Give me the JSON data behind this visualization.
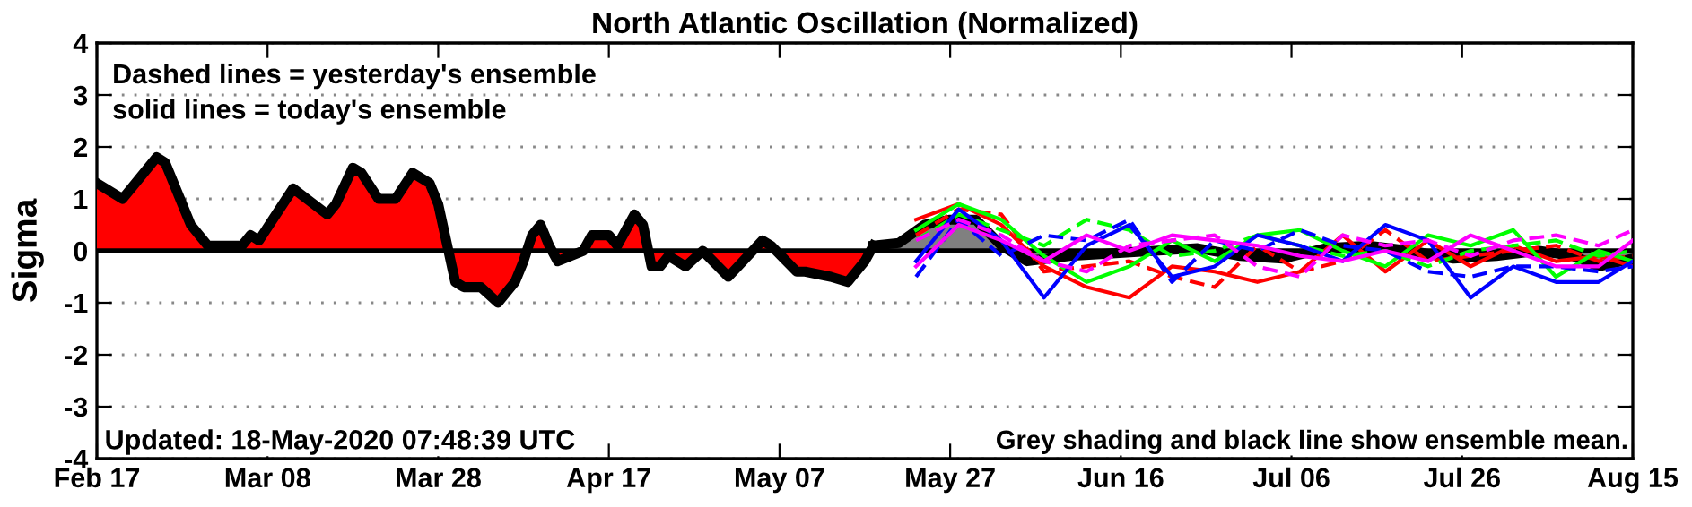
{
  "chart_data": {
    "type": "line",
    "title": "North Atlantic Oscillation (Normalized)",
    "ylabel": "Sigma",
    "annotations": [
      "Dashed lines = yesterday's ensemble",
      "solid lines = today's ensemble",
      "Updated: 18-May-2020 07:48:39 UTC",
      "Grey shading and black line show ensemble mean."
    ],
    "xlim": [
      "2020-02-17",
      "2020-08-15"
    ],
    "xticks": [
      {
        "value": "2020-02-17",
        "label": "Feb 17"
      },
      {
        "value": "2020-03-08",
        "label": "Mar 08"
      },
      {
        "value": "2020-03-28",
        "label": "Mar 28"
      },
      {
        "value": "2020-04-17",
        "label": "Apr 17"
      },
      {
        "value": "2020-05-07",
        "label": "May 07"
      },
      {
        "value": "2020-05-27",
        "label": "May 27"
      },
      {
        "value": "2020-06-16",
        "label": "Jun 16"
      },
      {
        "value": "2020-07-06",
        "label": "Jul 06"
      },
      {
        "value": "2020-07-26",
        "label": "Jul 26"
      },
      {
        "value": "2020-08-15",
        "label": "Aug 15"
      }
    ],
    "ylim": [
      -4,
      4
    ],
    "yticks": [
      -4,
      -3,
      -2,
      -1,
      0,
      1,
      2,
      3,
      4
    ],
    "grid": "y",
    "legend": false,
    "ref_lines": [
      {
        "axis": "y",
        "value": 0,
        "color": "#000000",
        "line_style": "solid"
      }
    ],
    "series": [
      {
        "color": "#ff0000",
        "line_style": "solid",
        "x": [
          "2020-05-23",
          "2020-05-28",
          "2020-06-02",
          "2020-06-07",
          "2020-06-12",
          "2020-06-17",
          "2020-06-22",
          "2020-06-27",
          "2020-07-02",
          "2020-07-07",
          "2020-07-12",
          "2020-07-17",
          "2020-07-22",
          "2020-07-27",
          "2020-08-01",
          "2020-08-06",
          "2020-08-11",
          "2020-08-15"
        ],
        "values": [
          0.6,
          0.9,
          0.5,
          -0.3,
          -0.7,
          -0.9,
          -0.3,
          -0.4,
          -0.6,
          -0.4,
          0.3,
          -0.4,
          0.2,
          -0.3,
          0.1,
          -0.2,
          -0.1,
          -0.3
        ]
      },
      {
        "color": "#ff0000",
        "line_style": "dashed",
        "x": [
          "2020-05-23",
          "2020-05-28",
          "2020-06-02",
          "2020-06-07",
          "2020-06-12",
          "2020-06-17",
          "2020-06-22",
          "2020-06-27",
          "2020-07-02",
          "2020-07-07",
          "2020-07-12",
          "2020-07-17",
          "2020-07-22",
          "2020-07-27",
          "2020-08-01",
          "2020-08-06",
          "2020-08-11",
          "2020-08-15"
        ],
        "values": [
          0.3,
          0.8,
          0.7,
          -0.4,
          -0.3,
          -0.2,
          -0.5,
          -0.7,
          0.1,
          -0.4,
          -0.2,
          0.4,
          -0.2,
          -0.1,
          0.0,
          0.1,
          -0.2,
          -0.1
        ]
      },
      {
        "color": "#00ff00",
        "line_style": "solid",
        "x": [
          "2020-05-23",
          "2020-05-28",
          "2020-06-02",
          "2020-06-07",
          "2020-06-12",
          "2020-06-17",
          "2020-06-22",
          "2020-06-27",
          "2020-07-02",
          "2020-07-07",
          "2020-07-12",
          "2020-07-17",
          "2020-07-22",
          "2020-07-27",
          "2020-08-01",
          "2020-08-06",
          "2020-08-11",
          "2020-08-15"
        ],
        "values": [
          0.4,
          0.9,
          0.6,
          -0.1,
          -0.6,
          -0.3,
          0.2,
          -0.2,
          0.3,
          0.4,
          0.0,
          -0.3,
          0.3,
          0.1,
          0.4,
          -0.5,
          0.0,
          -0.2
        ]
      },
      {
        "color": "#00ff00",
        "line_style": "dashed",
        "x": [
          "2020-05-23",
          "2020-05-28",
          "2020-06-02",
          "2020-06-07",
          "2020-06-12",
          "2020-06-17",
          "2020-06-22",
          "2020-06-27",
          "2020-07-02",
          "2020-07-07",
          "2020-07-12",
          "2020-07-17",
          "2020-07-22",
          "2020-07-27",
          "2020-08-01",
          "2020-08-06",
          "2020-08-11",
          "2020-08-15"
        ],
        "values": [
          0.2,
          0.7,
          0.4,
          0.1,
          0.6,
          0.4,
          -0.1,
          0.0,
          0.3,
          0.1,
          -0.1,
          0.0,
          -0.3,
          0.0,
          0.1,
          0.2,
          -0.1,
          0.0
        ]
      },
      {
        "color": "#0000ff",
        "line_style": "solid",
        "x": [
          "2020-05-23",
          "2020-05-28",
          "2020-06-02",
          "2020-06-07",
          "2020-06-12",
          "2020-06-17",
          "2020-06-22",
          "2020-06-27",
          "2020-07-02",
          "2020-07-07",
          "2020-07-12",
          "2020-07-17",
          "2020-07-22",
          "2020-07-27",
          "2020-08-01",
          "2020-08-06",
          "2020-08-11",
          "2020-08-15"
        ],
        "values": [
          -0.2,
          0.8,
          0.2,
          -0.9,
          0.1,
          0.5,
          -0.5,
          -0.3,
          0.3,
          0.1,
          -0.2,
          0.5,
          0.2,
          -0.9,
          -0.3,
          -0.6,
          -0.6,
          -0.2
        ]
      },
      {
        "color": "#0000ff",
        "line_style": "dashed",
        "x": [
          "2020-05-23",
          "2020-05-28",
          "2020-06-02",
          "2020-06-07",
          "2020-06-12",
          "2020-06-17",
          "2020-06-22",
          "2020-06-27",
          "2020-07-02",
          "2020-07-07",
          "2020-07-12",
          "2020-07-17",
          "2020-07-22",
          "2020-07-27",
          "2020-08-01",
          "2020-08-06",
          "2020-08-11",
          "2020-08-15"
        ],
        "values": [
          -0.5,
          0.6,
          -0.1,
          0.3,
          0.2,
          0.6,
          -0.6,
          0.2,
          0.0,
          0.4,
          0.1,
          0.0,
          -0.4,
          -0.5,
          -0.3,
          -0.3,
          -0.4,
          -0.3
        ]
      },
      {
        "color": "#ff00ff",
        "line_style": "solid",
        "x": [
          "2020-05-23",
          "2020-05-28",
          "2020-06-02",
          "2020-06-07",
          "2020-06-12",
          "2020-06-17",
          "2020-06-22",
          "2020-06-27",
          "2020-07-02",
          "2020-07-07",
          "2020-07-12",
          "2020-07-17",
          "2020-07-22",
          "2020-07-27",
          "2020-08-01",
          "2020-08-06",
          "2020-08-11",
          "2020-08-15"
        ],
        "values": [
          -0.3,
          0.5,
          0.2,
          -0.2,
          0.3,
          0.0,
          0.3,
          0.2,
          0.1,
          -0.1,
          -0.2,
          0.0,
          -0.2,
          0.3,
          0.0,
          -0.3,
          -0.3,
          0.2
        ]
      },
      {
        "color": "#ff00ff",
        "line_style": "dashed",
        "x": [
          "2020-05-23",
          "2020-05-28",
          "2020-06-02",
          "2020-06-07",
          "2020-06-12",
          "2020-06-17",
          "2020-06-22",
          "2020-06-27",
          "2020-07-02",
          "2020-07-07",
          "2020-07-12",
          "2020-07-17",
          "2020-07-22",
          "2020-07-27",
          "2020-08-01",
          "2020-08-06",
          "2020-08-11",
          "2020-08-15"
        ],
        "values": [
          0.2,
          0.6,
          0.3,
          -0.2,
          -0.4,
          0.1,
          0.2,
          0.3,
          -0.3,
          -0.5,
          0.3,
          0.1,
          0.2,
          -0.1,
          0.2,
          0.3,
          0.1,
          0.4
        ]
      },
      {
        "type": "area",
        "color": "#808080",
        "line_style": "solid",
        "x": [
          "2020-05-18",
          "2020-05-21",
          "2020-05-24",
          "2020-05-27",
          "2020-05-30",
          "2020-06-02",
          "2020-06-05",
          "2020-06-10",
          "2020-06-15",
          "2020-06-20",
          "2020-06-25",
          "2020-06-30",
          "2020-07-05",
          "2020-07-10",
          "2020-07-15",
          "2020-07-20",
          "2020-07-25",
          "2020-07-30",
          "2020-08-04",
          "2020-08-08",
          "2020-08-11",
          "2020-08-15"
        ],
        "values": [
          0.1,
          0.15,
          0.5,
          0.6,
          0.6,
          0.1,
          -0.2,
          -0.1,
          -0.05,
          0.0,
          0.05,
          -0.1,
          -0.15,
          0.05,
          0.1,
          0.0,
          -0.15,
          -0.1,
          0.0,
          -0.1,
          -0.3,
          -0.15
        ]
      },
      {
        "type": "area",
        "color": "#ff0000",
        "line_style": "solid",
        "x": [
          "2020-02-17",
          "2020-02-20",
          "2020-02-21",
          "2020-02-24",
          "2020-02-25",
          "2020-02-27",
          "2020-02-28",
          "2020-03-01",
          "2020-03-03",
          "2020-03-05",
          "2020-03-06",
          "2020-03-07",
          "2020-03-09",
          "2020-03-11",
          "2020-03-15",
          "2020-03-16",
          "2020-03-18",
          "2020-03-19",
          "2020-03-21",
          "2020-03-23",
          "2020-03-25",
          "2020-03-27",
          "2020-03-28",
          "2020-03-30",
          "2020-03-31",
          "2020-04-02",
          "2020-04-04",
          "2020-04-06",
          "2020-04-07",
          "2020-04-08",
          "2020-04-09",
          "2020-04-10",
          "2020-04-11",
          "2020-04-14",
          "2020-04-15",
          "2020-04-17",
          "2020-04-18",
          "2020-04-20",
          "2020-04-21",
          "2020-04-22",
          "2020-04-23",
          "2020-04-24",
          "2020-04-26",
          "2020-04-28",
          "2020-05-01",
          "2020-05-05",
          "2020-05-06",
          "2020-05-09",
          "2020-05-10",
          "2020-05-13",
          "2020-05-15",
          "2020-05-17",
          "2020-05-18"
        ],
        "values": [
          1.3,
          1.0,
          1.2,
          1.8,
          1.7,
          0.9,
          0.5,
          0.1,
          0.1,
          0.1,
          0.3,
          0.2,
          0.7,
          1.2,
          0.7,
          0.9,
          1.6,
          1.5,
          1.0,
          1.0,
          1.5,
          1.3,
          0.9,
          -0.6,
          -0.7,
          -0.7,
          -1.0,
          -0.6,
          -0.2,
          0.3,
          0.5,
          0.1,
          -0.2,
          0.0,
          0.3,
          0.3,
          0.1,
          0.7,
          0.5,
          -0.3,
          -0.3,
          -0.1,
          -0.3,
          0.0,
          -0.5,
          0.2,
          0.1,
          -0.4,
          -0.4,
          -0.5,
          -0.6,
          -0.2,
          0.1
        ]
      }
    ]
  }
}
